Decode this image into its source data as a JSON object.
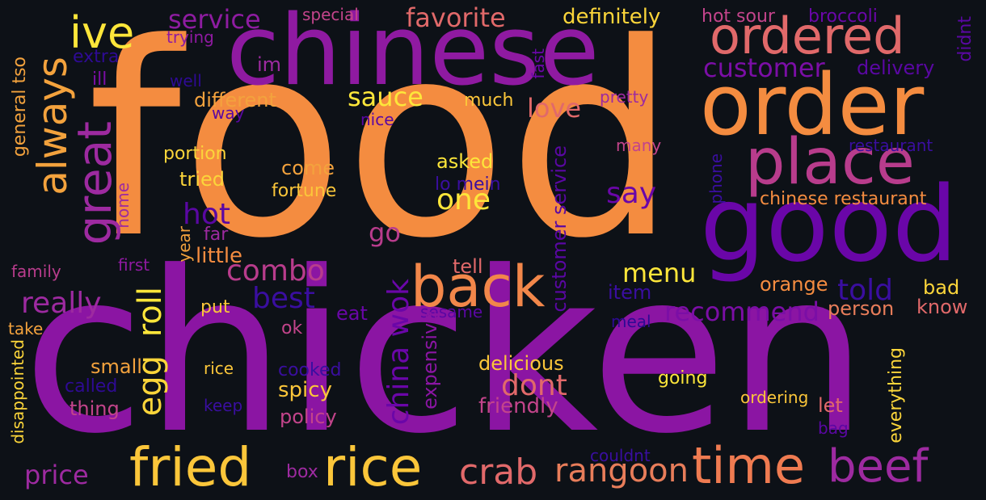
{
  "words": [
    {
      "text": "food",
      "color": "#f48c40"
    },
    {
      "text": "chicken",
      "color": "#8b15a3"
    },
    {
      "text": "chinese",
      "color": "#8f1aa1"
    },
    {
      "text": "order",
      "color": "#f48c40"
    },
    {
      "text": "good",
      "color": "#6a06a8"
    },
    {
      "text": "place",
      "color": "#b83c8c"
    },
    {
      "text": "ordered",
      "color": "#e1696a"
    },
    {
      "text": "back",
      "color": "#f2874a"
    },
    {
      "text": "rice",
      "color": "#fbc63a"
    },
    {
      "text": "fried",
      "color": "#fbc63a"
    },
    {
      "text": "time",
      "color": "#ef7b51"
    },
    {
      "text": "beef",
      "color": "#9d2aa0"
    },
    {
      "text": "crab",
      "color": "#e1696a"
    },
    {
      "text": "rangoon",
      "color": "#e87d5a"
    },
    {
      "text": "ive",
      "color": "#fde63a"
    },
    {
      "text": "always",
      "color": "#f3a23d"
    },
    {
      "text": "great",
      "color": "#9d2aa0"
    },
    {
      "text": "service",
      "color": "#8e1ca1"
    },
    {
      "text": "favorite",
      "color": "#e1696a"
    },
    {
      "text": "customer",
      "color": "#7b0ea6"
    },
    {
      "text": "delivery",
      "color": "#5a07a3"
    },
    {
      "text": "definitely",
      "color": "#fbd53a"
    },
    {
      "text": "hot sour",
      "color": "#c3448b"
    },
    {
      "text": "broccoli",
      "color": "#6a06a8"
    },
    {
      "text": "special",
      "color": "#c3448b"
    },
    {
      "text": "trying",
      "color": "#8f1aa1"
    },
    {
      "text": "extra",
      "color": "#2e0a94"
    },
    {
      "text": "ill",
      "color": "#7b0ea6"
    },
    {
      "text": "well",
      "color": "#2e0a94"
    },
    {
      "text": "im",
      "color": "#9d2aa0"
    },
    {
      "text": "sauce",
      "color": "#fde63a"
    },
    {
      "text": "different",
      "color": "#f3a23d"
    },
    {
      "text": "much",
      "color": "#fbc63a"
    },
    {
      "text": "way",
      "color": "#5a07a3"
    },
    {
      "text": "nice",
      "color": "#5a07a3"
    },
    {
      "text": "love",
      "color": "#e1696a"
    },
    {
      "text": "pretty",
      "color": "#9d2aa0"
    },
    {
      "text": "fast",
      "color": "#6a06a8"
    },
    {
      "text": "didnt",
      "color": "#5a07a3"
    },
    {
      "text": "general tso",
      "color": "#f3a23d"
    },
    {
      "text": "portion",
      "color": "#fbd53a"
    },
    {
      "text": "asked",
      "color": "#fde63a"
    },
    {
      "text": "many",
      "color": "#c3448b"
    },
    {
      "text": "restaurant",
      "color": "#3a0ea0"
    },
    {
      "text": "tried",
      "color": "#fbd53a"
    },
    {
      "text": "come",
      "color": "#f3a23d"
    },
    {
      "text": "lo mein",
      "color": "#3a0ea0"
    },
    {
      "text": "fortune",
      "color": "#fbc63a"
    },
    {
      "text": "one",
      "color": "#fde63a"
    },
    {
      "text": "say",
      "color": "#6a06a8"
    },
    {
      "text": "phone",
      "color": "#3a0ea0"
    },
    {
      "text": "chinese restaurant",
      "color": "#f48c40"
    },
    {
      "text": "hot",
      "color": "#5a07a3"
    },
    {
      "text": "home",
      "color": "#9d2aa0"
    },
    {
      "text": "far",
      "color": "#9d2aa0"
    },
    {
      "text": "year",
      "color": "#f3a23d"
    },
    {
      "text": "go",
      "color": "#b83c8c"
    },
    {
      "text": "little",
      "color": "#f48c40"
    },
    {
      "text": "first",
      "color": "#8f1aa1"
    },
    {
      "text": "family",
      "color": "#b83c8c"
    },
    {
      "text": "combo",
      "color": "#b83c8c"
    },
    {
      "text": "tell",
      "color": "#e1696a"
    },
    {
      "text": "menu",
      "color": "#fde63a"
    },
    {
      "text": "told",
      "color": "#3a0ea0"
    },
    {
      "text": "orange",
      "color": "#f48c40"
    },
    {
      "text": "bad",
      "color": "#fbd53a"
    },
    {
      "text": "really",
      "color": "#9d2aa0"
    },
    {
      "text": "best",
      "color": "#3a0ea0"
    },
    {
      "text": "roll",
      "color": "#fde63a"
    },
    {
      "text": "egg",
      "color": "#fbd53a"
    },
    {
      "text": "item",
      "color": "#3a0ea0"
    },
    {
      "text": "recommend",
      "color": "#7b0ea6"
    },
    {
      "text": "person",
      "color": "#e87d5a"
    },
    {
      "text": "know",
      "color": "#e1696a"
    },
    {
      "text": "put",
      "color": "#fbc63a"
    },
    {
      "text": "eat",
      "color": "#6a06a8"
    },
    {
      "text": "sesame",
      "color": "#5a07a3"
    },
    {
      "text": "meal",
      "color": "#2e0a94"
    },
    {
      "text": "ok",
      "color": "#c3448b"
    },
    {
      "text": "take",
      "color": "#f3a23d"
    },
    {
      "text": "china wok",
      "color": "#6a06a8"
    },
    {
      "text": "customer service",
      "color": "#5a07a3"
    },
    {
      "text": "expensive",
      "color": "#8b15a3"
    },
    {
      "text": "small",
      "color": "#f3a23d"
    },
    {
      "text": "rice",
      "color": "#fbc63a"
    },
    {
      "text": "cooked",
      "color": "#3a0ea0"
    },
    {
      "text": "delicious",
      "color": "#fbc63a"
    },
    {
      "text": "dont",
      "color": "#e1696a"
    },
    {
      "text": "called",
      "color": "#2e0a94"
    },
    {
      "text": "spicy",
      "color": "#fbc63a"
    },
    {
      "text": "going",
      "color": "#fde63a"
    },
    {
      "text": "everything",
      "color": "#fbd53a"
    },
    {
      "text": "disappointed",
      "color": "#fbd53a"
    },
    {
      "text": "thing",
      "color": "#c3448b"
    },
    {
      "text": "keep",
      "color": "#3a0ea0"
    },
    {
      "text": "policy",
      "color": "#c3448b"
    },
    {
      "text": "friendly",
      "color": "#c3448b"
    },
    {
      "text": "ordering",
      "color": "#fbc63a"
    },
    {
      "text": "let",
      "color": "#e1696a"
    },
    {
      "text": "bag",
      "color": "#5a07a3"
    },
    {
      "text": "couldnt",
      "color": "#3a0ea0"
    },
    {
      "text": "price",
      "color": "#9d2aa0"
    },
    {
      "text": "box",
      "color": "#9d2aa0"
    }
  ]
}
